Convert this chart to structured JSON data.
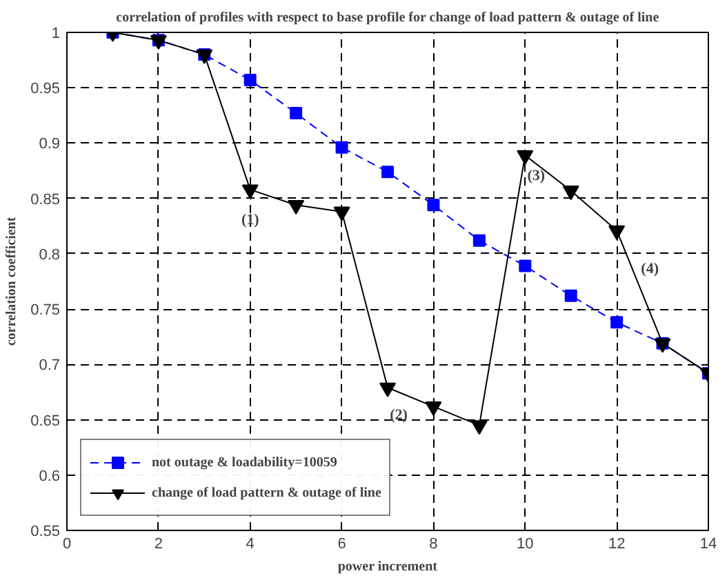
{
  "chart_data": {
    "type": "line",
    "title": "correlation of profiles with respect to base profile for change of load pattern & outage of line",
    "xlabel": "power increment",
    "ylabel": "correlation coefficient",
    "x": [
      1,
      2,
      3,
      4,
      5,
      6,
      7,
      8,
      9,
      10,
      11,
      12,
      13,
      14
    ],
    "series": [
      {
        "name": "not outage & loadability=10059",
        "color": "#0000ff",
        "marker": "square",
        "line_style": "dashed",
        "values": [
          1,
          0.993,
          0.98,
          0.957,
          0.927,
          0.896,
          0.874,
          0.844,
          0.812,
          0.789,
          0.762,
          0.738,
          0.719,
          0.692
        ]
      },
      {
        "name": "change of load pattern & outage of line",
        "color": "#000000",
        "marker": "triangle",
        "line_style": "solid",
        "values": [
          1,
          0.993,
          0.98,
          0.858,
          0.844,
          0.838,
          0.679,
          0.662,
          0.645,
          0.889,
          0.857,
          0.821,
          0.719,
          0.692
        ]
      }
    ],
    "xlim": [
      0,
      14
    ],
    "xticks": [
      0,
      2,
      4,
      6,
      8,
      10,
      12,
      14
    ],
    "ylim": [
      0.55,
      1
    ],
    "yticks": [
      0.55,
      0.6,
      0.65,
      0.7,
      0.75,
      0.8,
      0.85,
      0.9,
      0.95,
      1
    ],
    "annotations": [
      {
        "text": "(1)",
        "x": 4,
        "y": 0.858
      },
      {
        "text": "(2)",
        "x": 7,
        "y": 0.679
      },
      {
        "text": "(3)",
        "x": 10,
        "y": 0.889
      },
      {
        "text": "(4)",
        "x": 12,
        "y": 0.821
      }
    ],
    "grid": true,
    "legend": "bottom left"
  }
}
